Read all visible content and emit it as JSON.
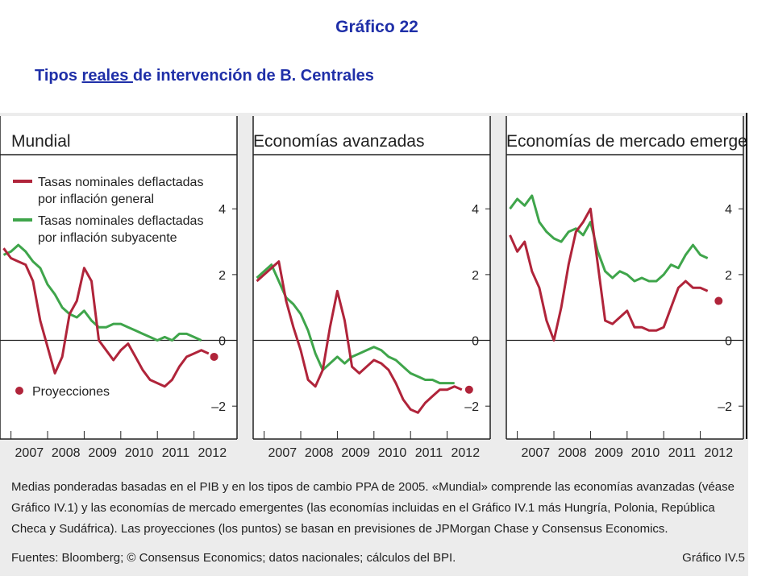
{
  "slide": {
    "title": "Gráfico 22",
    "subtitle_a": "Tipos ",
    "subtitle_b": "reales ",
    "subtitle_c": "de intervención de B. Centrales"
  },
  "colors": {
    "general": "#b0243a",
    "subyacente": "#3fa54b",
    "text": "#1f2fa8"
  },
  "legend": {
    "general": [
      "Tasas nominales deflactadas",
      "por inflación general"
    ],
    "subyacente": [
      "Tasas nominales deflactadas",
      "por inflación subyacente"
    ],
    "projections": "Proyecciones"
  },
  "chart_data": [
    {
      "type": "line",
      "title": "Mundial",
      "x_ticks": [
        "2007",
        "2008",
        "2009",
        "2010",
        "2011",
        "2012"
      ],
      "ylim": [
        -3,
        5.5
      ],
      "y_ticks": [
        "4",
        "2",
        "0",
        "–2"
      ],
      "series": [
        {
          "name": "Tasas nominales deflactadas por inflación general",
          "x": [
            2006.8,
            2007.0,
            2007.2,
            2007.4,
            2007.6,
            2007.8,
            2008.0,
            2008.2,
            2008.4,
            2008.6,
            2008.8,
            2009.0,
            2009.2,
            2009.4,
            2009.6,
            2009.8,
            2010.0,
            2010.2,
            2010.4,
            2010.6,
            2010.8,
            2011.0,
            2011.2,
            2011.4,
            2011.6,
            2011.8,
            2012.0,
            2012.2,
            2012.4
          ],
          "y": [
            2.8,
            2.5,
            2.4,
            2.3,
            1.8,
            0.6,
            -0.2,
            -1.0,
            -0.5,
            0.8,
            1.2,
            2.2,
            1.8,
            0.0,
            -0.3,
            -0.6,
            -0.3,
            -0.1,
            -0.5,
            -0.9,
            -1.2,
            -1.3,
            -1.4,
            -1.2,
            -0.8,
            -0.5,
            -0.4,
            -0.3,
            -0.4
          ]
        },
        {
          "name": "Tasas nominales deflactadas por inflación subyacente",
          "x": [
            2006.8,
            2007.0,
            2007.2,
            2007.4,
            2007.6,
            2007.8,
            2008.0,
            2008.2,
            2008.4,
            2008.6,
            2008.8,
            2009.0,
            2009.2,
            2009.4,
            2009.6,
            2009.8,
            2010.0,
            2010.2,
            2010.4,
            2010.6,
            2010.8,
            2011.0,
            2011.2,
            2011.4,
            2011.6,
            2011.8,
            2012.0,
            2012.2
          ],
          "y": [
            2.6,
            2.7,
            2.9,
            2.7,
            2.4,
            2.2,
            1.7,
            1.4,
            1.0,
            0.8,
            0.7,
            0.9,
            0.6,
            0.4,
            0.4,
            0.5,
            0.5,
            0.4,
            0.3,
            0.2,
            0.1,
            0.0,
            0.1,
            0.0,
            0.2,
            0.2,
            0.1,
            0.0
          ]
        }
      ],
      "projection": {
        "x": 2012.55,
        "y": -0.5
      }
    },
    {
      "type": "line",
      "title": "Economías avanzadas",
      "x_ticks": [
        "2007",
        "2008",
        "2009",
        "2010",
        "2011",
        "2012"
      ],
      "ylim": [
        -3,
        5.5
      ],
      "y_ticks": [
        "4",
        "2",
        "0",
        "–2"
      ],
      "series": [
        {
          "name": "Tasas nominales deflactadas por inflación general",
          "x": [
            2006.8,
            2007.0,
            2007.2,
            2007.4,
            2007.6,
            2007.8,
            2008.0,
            2008.2,
            2008.4,
            2008.6,
            2008.8,
            2009.0,
            2009.2,
            2009.4,
            2009.6,
            2009.8,
            2010.0,
            2010.2,
            2010.4,
            2010.6,
            2010.8,
            2011.0,
            2011.2,
            2011.4,
            2011.6,
            2011.8,
            2012.0,
            2012.2,
            2012.4
          ],
          "y": [
            1.8,
            2.0,
            2.2,
            2.4,
            1.2,
            0.4,
            -0.3,
            -1.2,
            -1.4,
            -0.9,
            0.4,
            1.5,
            0.6,
            -0.8,
            -1.0,
            -0.8,
            -0.6,
            -0.7,
            -0.9,
            -1.3,
            -1.8,
            -2.1,
            -2.2,
            -1.9,
            -1.7,
            -1.5,
            -1.5,
            -1.4,
            -1.5
          ]
        },
        {
          "name": "Tasas nominales deflactadas por inflación subyacente",
          "x": [
            2006.8,
            2007.0,
            2007.2,
            2007.4,
            2007.6,
            2007.8,
            2008.0,
            2008.2,
            2008.4,
            2008.6,
            2008.8,
            2009.0,
            2009.2,
            2009.4,
            2009.6,
            2009.8,
            2010.0,
            2010.2,
            2010.4,
            2010.6,
            2010.8,
            2011.0,
            2011.2,
            2011.4,
            2011.6,
            2011.8,
            2012.0,
            2012.2
          ],
          "y": [
            1.9,
            2.1,
            2.3,
            1.8,
            1.3,
            1.1,
            0.8,
            0.3,
            -0.4,
            -0.9,
            -0.7,
            -0.5,
            -0.7,
            -0.5,
            -0.4,
            -0.3,
            -0.2,
            -0.3,
            -0.5,
            -0.6,
            -0.8,
            -1.0,
            -1.1,
            -1.2,
            -1.2,
            -1.3,
            -1.3,
            -1.3
          ]
        }
      ],
      "projection": {
        "x": 2012.6,
        "y": -1.5
      }
    },
    {
      "type": "line",
      "title": "Economías de mercado emergentes",
      "x_ticks": [
        "2007",
        "2008",
        "2009",
        "2010",
        "2011",
        "2012"
      ],
      "ylim": [
        -3,
        5.5
      ],
      "y_ticks": [
        "4",
        "2",
        "0",
        "–2"
      ],
      "series": [
        {
          "name": "Tasas nominales deflactadas por inflación general",
          "x": [
            2006.8,
            2007.0,
            2007.2,
            2007.4,
            2007.6,
            2007.8,
            2008.0,
            2008.2,
            2008.4,
            2008.6,
            2008.8,
            2009.0,
            2009.2,
            2009.4,
            2009.6,
            2009.8,
            2010.0,
            2010.2,
            2010.4,
            2010.6,
            2010.8,
            2011.0,
            2011.2,
            2011.4,
            2011.6,
            2011.8,
            2012.0,
            2012.2
          ],
          "y": [
            3.2,
            2.7,
            3.0,
            2.1,
            1.6,
            0.6,
            0.0,
            1.0,
            2.3,
            3.3,
            3.6,
            4.0,
            2.3,
            0.6,
            0.5,
            0.7,
            0.9,
            0.4,
            0.4,
            0.3,
            0.3,
            0.4,
            1.0,
            1.6,
            1.8,
            1.6,
            1.6,
            1.5
          ]
        },
        {
          "name": "Tasas nominales deflactadas por inflación subyacente",
          "x": [
            2006.8,
            2007.0,
            2007.2,
            2007.4,
            2007.6,
            2007.8,
            2008.0,
            2008.2,
            2008.4,
            2008.6,
            2008.8,
            2009.0,
            2009.2,
            2009.4,
            2009.6,
            2009.8,
            2010.0,
            2010.2,
            2010.4,
            2010.6,
            2010.8,
            2011.0,
            2011.2,
            2011.4,
            2011.6,
            2011.8,
            2012.0,
            2012.2
          ],
          "y": [
            4.0,
            4.3,
            4.1,
            4.4,
            3.6,
            3.3,
            3.1,
            3.0,
            3.3,
            3.4,
            3.2,
            3.6,
            2.7,
            2.1,
            1.9,
            2.1,
            2.0,
            1.8,
            1.9,
            1.8,
            1.8,
            2.0,
            2.3,
            2.2,
            2.6,
            2.9,
            2.6,
            2.5
          ]
        }
      ],
      "projection": {
        "x": 2012.5,
        "y": 1.2
      }
    }
  ],
  "note": {
    "line1": "Medias ponderadas basadas en el PIB y en los tipos de cambio PPA de 2005. «Mundial» comprende las economías avanzadas (véase",
    "line2": "Gráfico IV.1) y las economías de mercado emergentes (las economías incluidas en el Gráfico IV.1 más Hungría, Polonia, República",
    "line3": "Checa y Sudáfrica). Las proyecciones (los puntos) se basan en previsiones de JPMorgan Chase y Consensus Economics."
  },
  "sources": "Fuentes: Bloomberg; © Consensus Economics; datos nacionales; cálculos del BPI.",
  "figure_id": "Gráfico IV.5"
}
